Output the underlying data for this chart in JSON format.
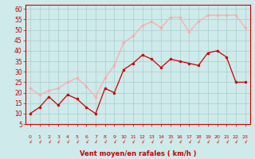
{
  "xlabel": "Vent moyen/en rafales ( km/h )",
  "x": [
    0,
    1,
    2,
    3,
    4,
    5,
    6,
    7,
    8,
    9,
    10,
    11,
    12,
    13,
    14,
    15,
    16,
    17,
    18,
    19,
    20,
    21,
    22,
    23
  ],
  "avg_wind": [
    10,
    13,
    18,
    14,
    19,
    17,
    13,
    10,
    22,
    20,
    31,
    34,
    38,
    36,
    32,
    36,
    35,
    34,
    33,
    39,
    40,
    37,
    25,
    25
  ],
  "gust_wind": [
    22,
    19,
    21,
    22,
    25,
    27,
    23,
    18,
    27,
    33,
    44,
    47,
    52,
    54,
    51,
    56,
    56,
    49,
    54,
    57,
    57,
    57,
    57,
    51
  ],
  "avg_color": "#cc0000",
  "gust_color": "#ffaaaa",
  "bg_color": "#ceeaea",
  "grid_color": "#aacccc",
  "ylim": [
    5,
    62
  ],
  "yticks": [
    5,
    10,
    15,
    20,
    25,
    30,
    35,
    40,
    45,
    50,
    55,
    60
  ],
  "xlim": [
    -0.5,
    23.5
  ],
  "xlabel_color": "#cc0000",
  "tick_color": "#cc0000",
  "axis_color": "#cc0000"
}
